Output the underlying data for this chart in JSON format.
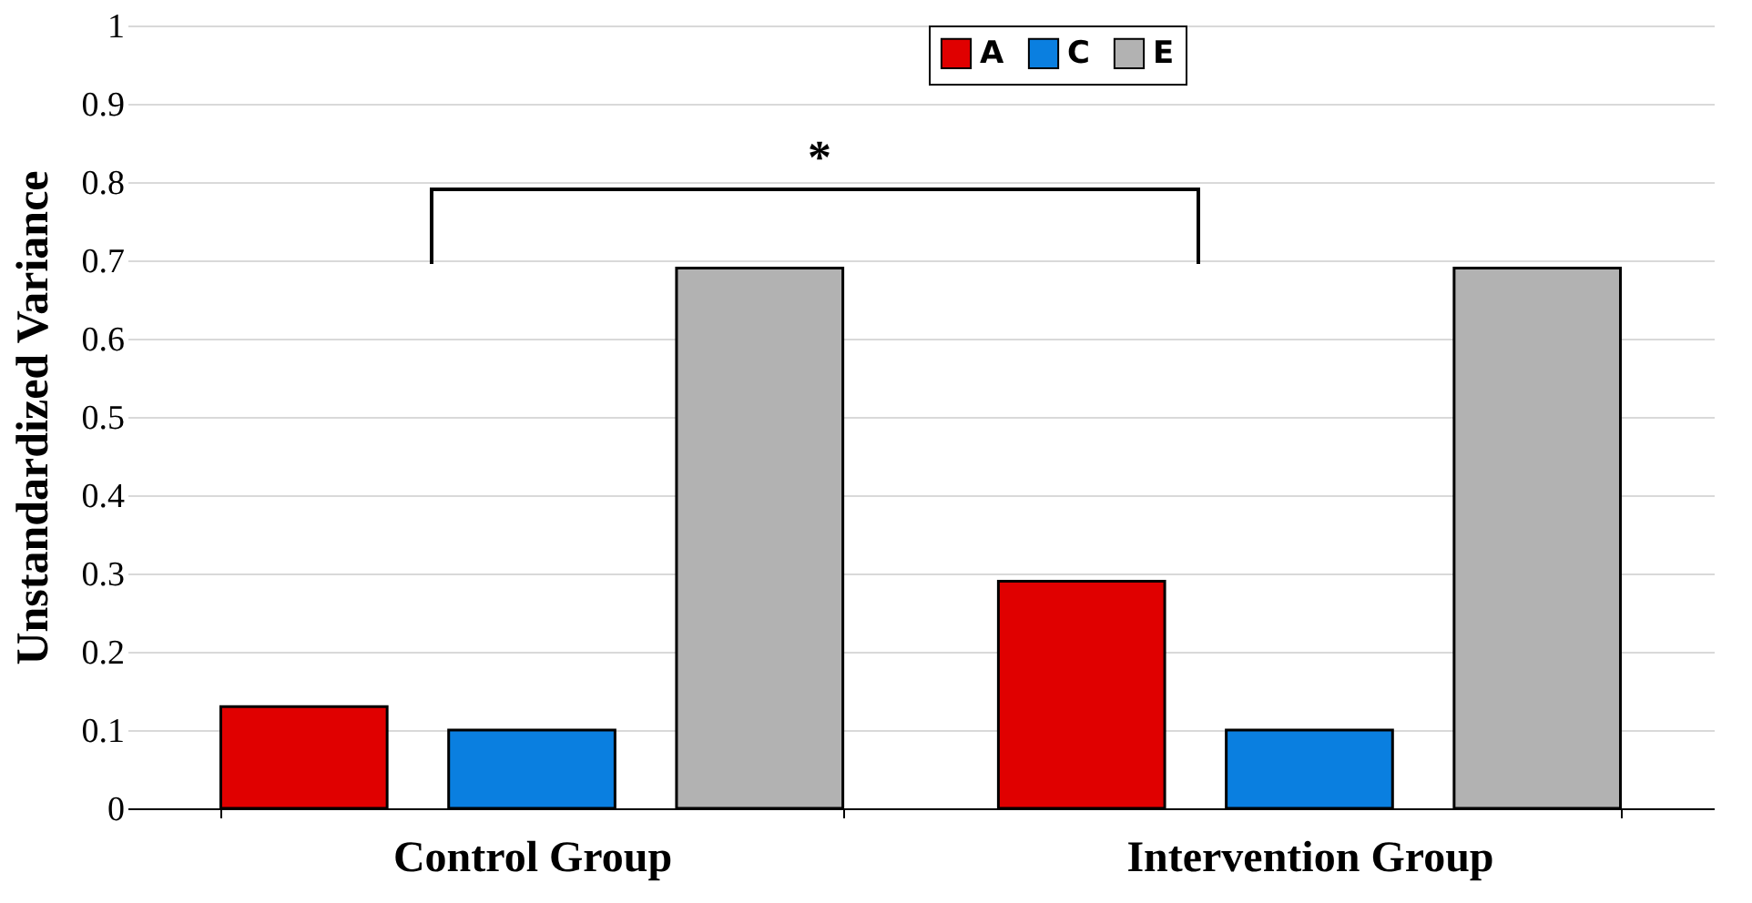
{
  "chart_data": {
    "type": "bar",
    "ylabel": "Unstandardized Variance",
    "categories": [
      "Control Group",
      "Intervention Group"
    ],
    "series": [
      {
        "name": "A",
        "color": "#e00000",
        "values": [
          0.13,
          0.29
        ]
      },
      {
        "name": "C",
        "color": "#0a7fe0",
        "values": [
          0.1,
          0.1
        ]
      },
      {
        "name": "E",
        "color": "#b2b2b2",
        "values": [
          0.69,
          0.69
        ]
      }
    ],
    "ylim": [
      0,
      1
    ],
    "yticks": [
      0,
      0.1,
      0.2,
      0.3,
      0.4,
      0.5,
      0.6,
      0.7,
      0.8,
      0.9,
      1
    ],
    "grid": "y",
    "legend": "top",
    "annotations": [
      "*"
    ]
  }
}
